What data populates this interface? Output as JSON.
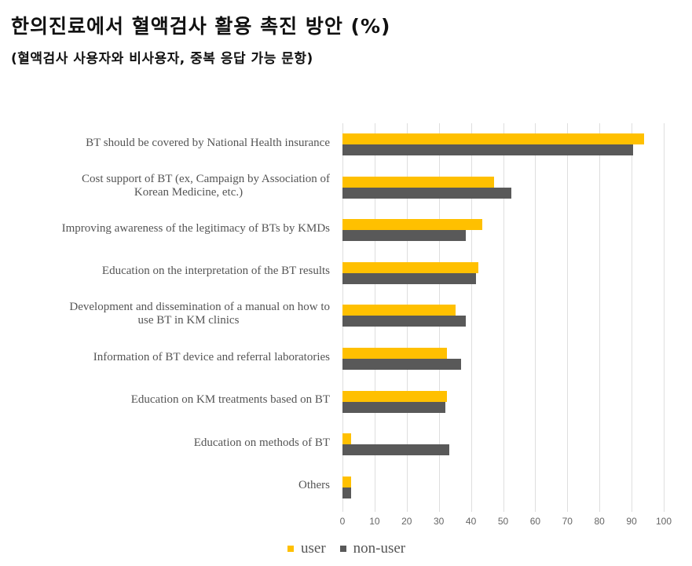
{
  "title": "한의진료에서 혈액검사 활용 촉진 방안 (%)",
  "subtitle": "(혈액검사 사용자와 비사용자, 중복 응답 가능 문항)",
  "colors": {
    "user": "#FFC000",
    "non_user": "#595959",
    "grid": "#dedede"
  },
  "legend": {
    "user": "user",
    "non_user": "non-user"
  },
  "axis": {
    "ticks": [
      "0",
      "10",
      "20",
      "30",
      "40",
      "50",
      "60",
      "70",
      "80",
      "90",
      "100"
    ]
  },
  "categories": [
    {
      "line1": "BT should be covered by National Health insurance",
      "line2": ""
    },
    {
      "line1": "Cost support of BT (ex, Campaign by Association of",
      "line2": "Korean Medicine, etc.)"
    },
    {
      "line1": "Improving awareness of the legitimacy of BTs by KMDs",
      "line2": ""
    },
    {
      "line1": "Education on the interpretation of the BT results",
      "line2": ""
    },
    {
      "line1": "Development and dissemination of a manual on how to",
      "line2": "use BT in KM clinics"
    },
    {
      "line1": "Information of BT device and referral laboratories",
      "line2": ""
    },
    {
      "line1": "Education on KM treatments based on BT",
      "line2": ""
    },
    {
      "line1": "Education on methods of BT",
      "line2": ""
    },
    {
      "line1": "Others",
      "line2": ""
    }
  ],
  "chart_data": {
    "type": "bar",
    "orientation": "horizontal",
    "title": "한의진료에서 혈액검사 활용 촉진 방안 (%)",
    "subtitle": "(혈액검사 사용자와 비사용자, 중복 응답 가능 문항)",
    "categories": [
      "BT should be covered by National Health insurance",
      "Cost support of BT (ex, Campaign by Association of Korean Medicine, etc.)",
      "Improving awareness of the legitimacy of BTs by KMDs",
      "Education on the interpretation of the BT results",
      "Development and dissemination of a manual on how to use BT in KM clinics",
      "Information of BT device and referral laboratories",
      "Education on KM treatments based on BT",
      "Education on methods of BT",
      "Others"
    ],
    "series": [
      {
        "name": "user",
        "color": "#FFC000",
        "values": [
          94.0,
          47.2,
          43.4,
          42.4,
          35.2,
          32.5,
          32.5,
          2.7,
          2.7
        ]
      },
      {
        "name": "non-user",
        "color": "#595959",
        "values": [
          90.4,
          52.6,
          38.3,
          41.5,
          38.3,
          36.8,
          32.0,
          33.3,
          2.7
        ]
      }
    ],
    "xlabel": "",
    "ylabel": "",
    "xlim": [
      0,
      100
    ],
    "xticks": [
      0,
      10,
      20,
      30,
      40,
      50,
      60,
      70,
      80,
      90,
      100
    ],
    "grid": "vertical",
    "legend_position": "bottom"
  }
}
